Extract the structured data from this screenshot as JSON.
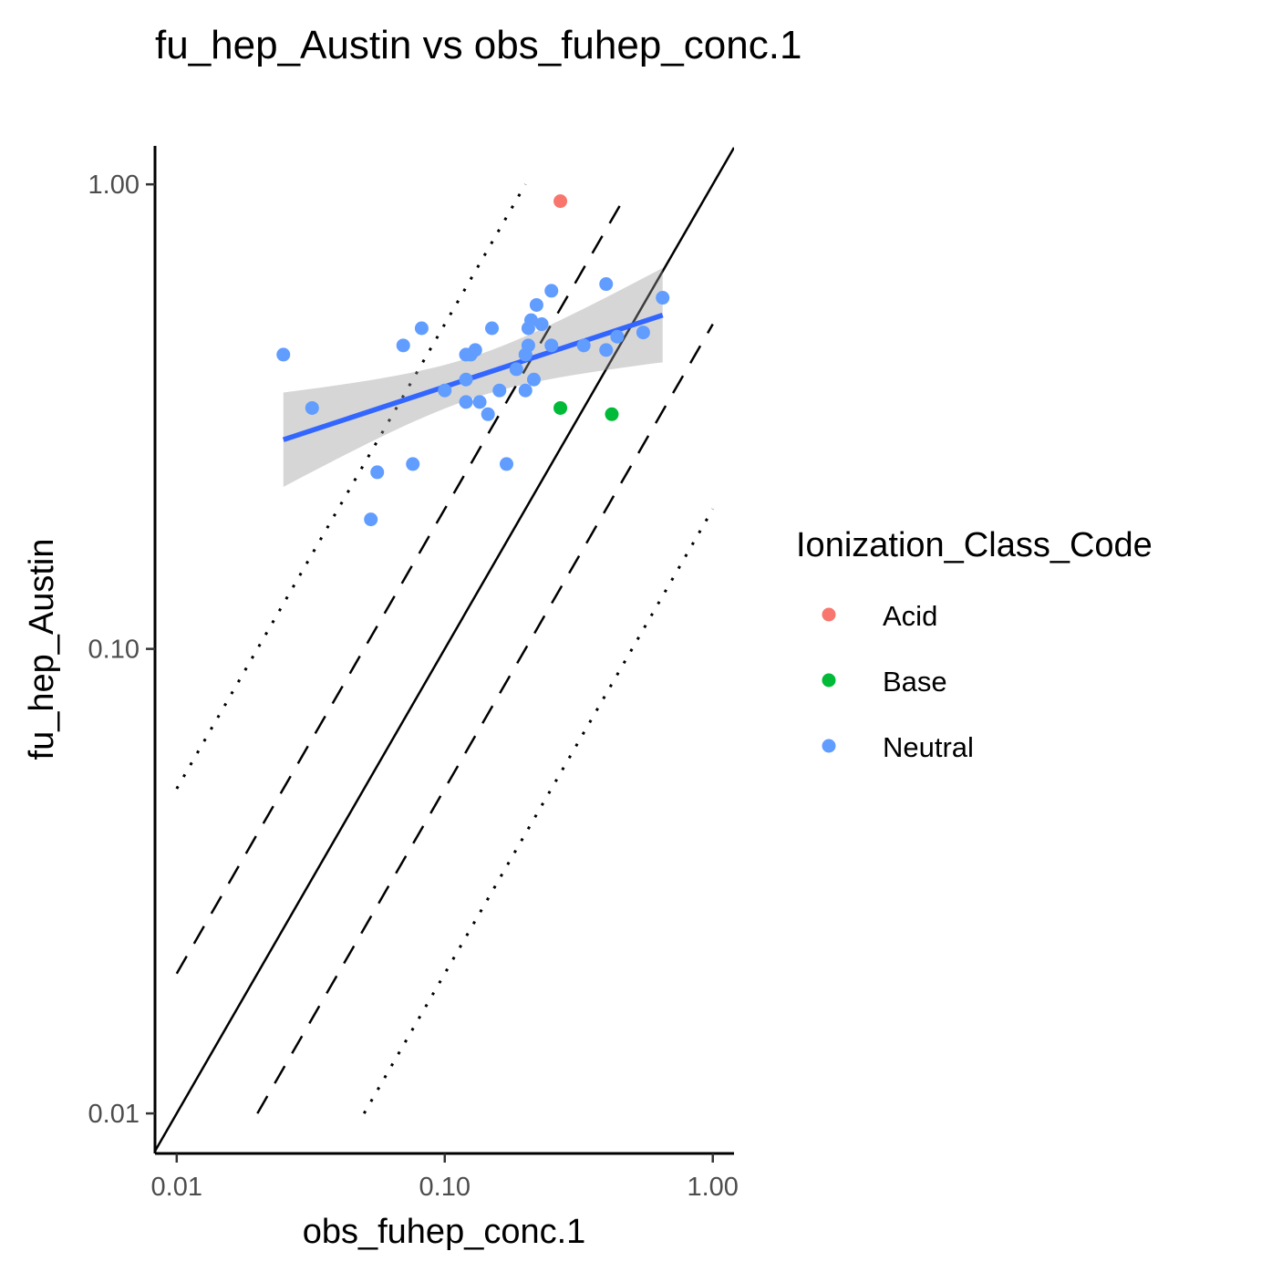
{
  "chart_data": {
    "type": "scatter",
    "title": "fu_hep_Austin vs obs_fuhep_conc.1",
    "xlabel": "obs_fuhep_conc.1",
    "ylabel": "fu_hep_Austin",
    "x_scale": "log10",
    "y_scale": "log10",
    "xlim": [
      0.0083,
      1.2
    ],
    "ylim": [
      0.0082,
      1.21
    ],
    "x_ticks": [
      "0.01",
      "0.10",
      "1.00"
    ],
    "y_ticks": [
      "0.01",
      "0.10",
      "1.00"
    ],
    "grid": false,
    "legend": {
      "title": "Ionization_Class_Code",
      "position": "right",
      "entries": [
        {
          "name": "Acid",
          "color": "#F8766D"
        },
        {
          "name": "Base",
          "color": "#00BA38"
        },
        {
          "name": "Neutral",
          "color": "#619CFF"
        }
      ]
    },
    "series": [
      {
        "name": "Acid",
        "color": "#F8766D",
        "points": [
          [
            0.27,
            0.92
          ]
        ]
      },
      {
        "name": "Base",
        "color": "#00BA38",
        "points": [
          [
            0.27,
            0.33
          ],
          [
            0.42,
            0.32
          ]
        ]
      },
      {
        "name": "Neutral",
        "color": "#619CFF",
        "points": [
          [
            0.025,
            0.43
          ],
          [
            0.032,
            0.33
          ],
          [
            0.053,
            0.19
          ],
          [
            0.056,
            0.24
          ],
          [
            0.07,
            0.45
          ],
          [
            0.076,
            0.25
          ],
          [
            0.082,
            0.49
          ],
          [
            0.1,
            0.36
          ],
          [
            0.12,
            0.38
          ],
          [
            0.12,
            0.34
          ],
          [
            0.12,
            0.43
          ],
          [
            0.125,
            0.43
          ],
          [
            0.13,
            0.44
          ],
          [
            0.135,
            0.34
          ],
          [
            0.145,
            0.32
          ],
          [
            0.15,
            0.49
          ],
          [
            0.16,
            0.36
          ],
          [
            0.17,
            0.25
          ],
          [
            0.185,
            0.4
          ],
          [
            0.2,
            0.36
          ],
          [
            0.2,
            0.43
          ],
          [
            0.205,
            0.45
          ],
          [
            0.205,
            0.49
          ],
          [
            0.21,
            0.51
          ],
          [
            0.215,
            0.38
          ],
          [
            0.22,
            0.55
          ],
          [
            0.23,
            0.5
          ],
          [
            0.25,
            0.45
          ],
          [
            0.25,
            0.59
          ],
          [
            0.33,
            0.45
          ],
          [
            0.4,
            0.44
          ],
          [
            0.4,
            0.61
          ],
          [
            0.44,
            0.47
          ],
          [
            0.55,
            0.48
          ],
          [
            0.65,
            0.57
          ]
        ]
      }
    ],
    "smooth": {
      "method": "lm",
      "color": "#3366FF",
      "x": [
        0.025,
        0.65
      ],
      "y": [
        0.282,
        0.523
      ],
      "ci_lower": [
        0.223,
        0.447
      ],
      "ci_upper": [
        0.356,
        0.614
      ]
    },
    "reference_lines": [
      {
        "kind": "identity",
        "style": "solid",
        "factor": 1
      },
      {
        "kind": "2-fold",
        "style": "dashed",
        "factor": 2
      },
      {
        "kind": "2-fold",
        "style": "dashed",
        "factor": 0.5
      },
      {
        "kind": "5-fold",
        "style": "dotted",
        "factor": 5
      },
      {
        "kind": "5-fold",
        "style": "dotted",
        "factor": 0.2
      }
    ]
  }
}
